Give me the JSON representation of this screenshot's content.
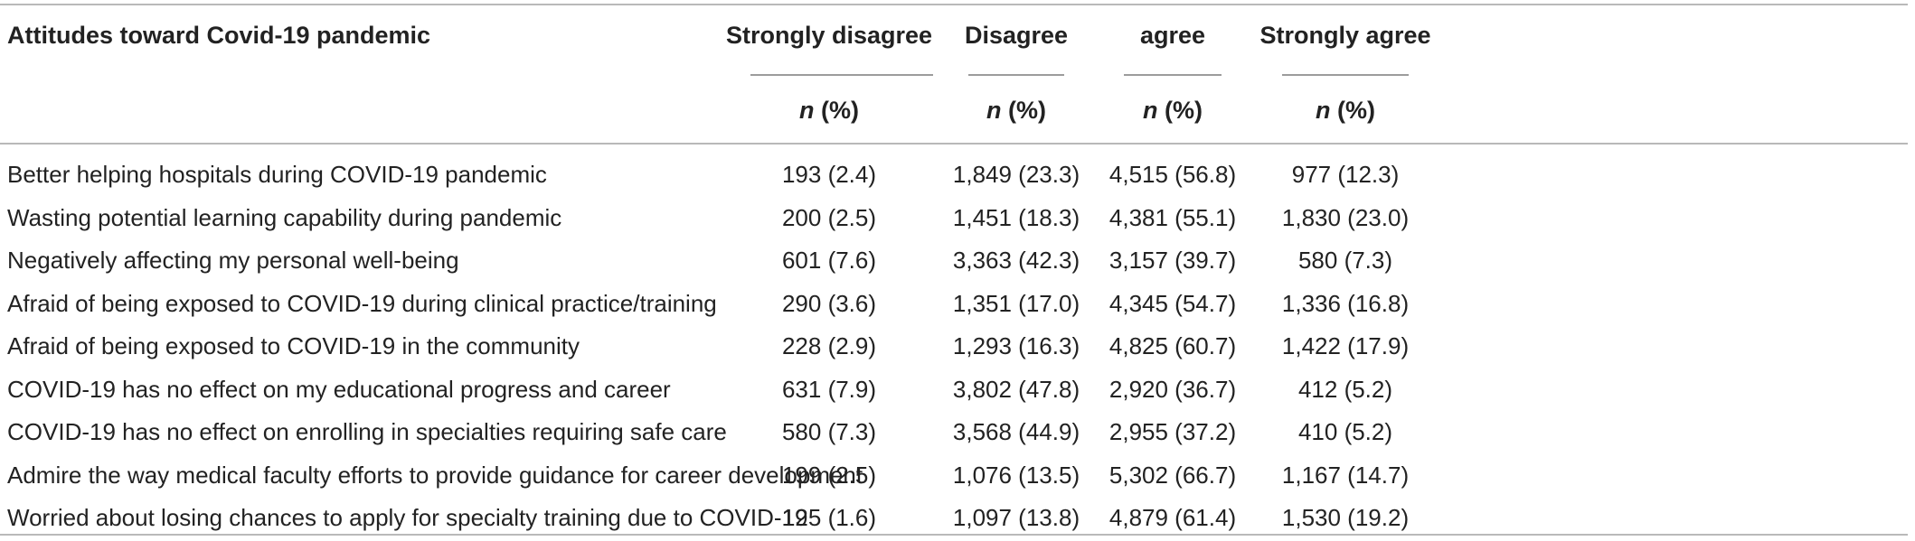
{
  "table": {
    "header": {
      "row_label": "Attitudes toward Covid-19 pandemic",
      "columns": [
        "Strongly disagree",
        "Disagree",
        "agree",
        "Strongly agree"
      ],
      "unit_n": "n",
      "unit_rest": " (%)"
    },
    "rows": [
      {
        "label": "Better helping hospitals during COVID-19 pandemic",
        "values": [
          "193 (2.4)",
          "1,849 (23.3)",
          "4,515 (56.8)",
          "977 (12.3)"
        ]
      },
      {
        "label": "Wasting potential learning capability during pandemic",
        "values": [
          "200 (2.5)",
          "1,451 (18.3)",
          "4,381 (55.1)",
          "1,830 (23.0)"
        ]
      },
      {
        "label": "Negatively affecting my personal well-being",
        "values": [
          "601 (7.6)",
          "3,363 (42.3)",
          "3,157 (39.7)",
          "580 (7.3)"
        ]
      },
      {
        "label": "Afraid of being exposed to COVID-19 during clinical practice/training",
        "values": [
          "290 (3.6)",
          "1,351 (17.0)",
          "4,345 (54.7)",
          "1,336 (16.8)"
        ]
      },
      {
        "label": "Afraid of being exposed to COVID-19 in the community",
        "values": [
          "228 (2.9)",
          "1,293 (16.3)",
          "4,825 (60.7)",
          "1,422 (17.9)"
        ]
      },
      {
        "label": "COVID-19 has no effect on my educational progress and career",
        "values": [
          "631 (7.9)",
          "3,802 (47.8)",
          "2,920 (36.7)",
          "412 (5.2)"
        ]
      },
      {
        "label": "COVID-19 has no effect on enrolling in specialties requiring safe care",
        "values": [
          "580 (7.3)",
          "3,568 (44.9)",
          "2,955 (37.2)",
          "410 (5.2)"
        ]
      },
      {
        "label": "Admire the way medical faculty efforts to provide guidance for career development",
        "values": [
          "199 (2.5)",
          "1,076 (13.5)",
          "5,302 (66.7)",
          "1,167 (14.7)"
        ]
      },
      {
        "label": "Worried about losing chances to apply for specialty training due to COVID-19",
        "values": [
          "125 (1.6)",
          "1,097 (13.8)",
          "4,879 (61.4)",
          "1,530 (19.2)"
        ]
      }
    ]
  }
}
